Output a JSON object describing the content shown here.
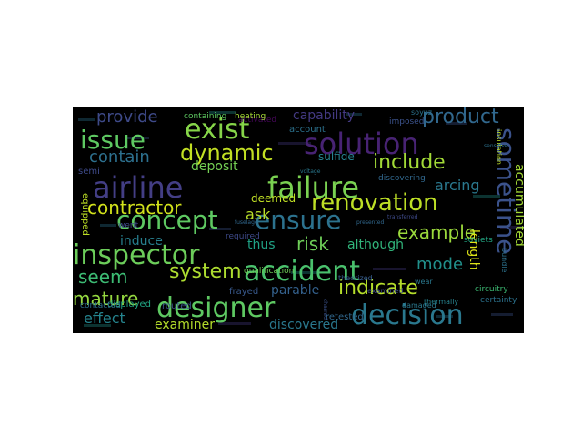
{
  "cloud": {
    "background": "#000000",
    "words": [
      {
        "text": "solution",
        "color": "#482374"
      },
      {
        "text": "sometime",
        "color": "#3b528b"
      },
      {
        "text": "decision",
        "color": "#2a788e"
      },
      {
        "text": "airline",
        "color": "#433e85"
      },
      {
        "text": "failure",
        "color": "#7ad151"
      },
      {
        "text": "issue",
        "color": "#5ec962"
      },
      {
        "text": "exist",
        "color": "#86d549"
      },
      {
        "text": "designer",
        "color": "#5ec962"
      },
      {
        "text": "accident",
        "color": "#4ac16d"
      },
      {
        "text": "concept",
        "color": "#5ec962"
      },
      {
        "text": "ensure",
        "color": "#2c728e"
      },
      {
        "text": "renovation",
        "color": "#bddf26"
      },
      {
        "text": "inspector",
        "color": "#6ccd5a"
      },
      {
        "text": "dynamic",
        "color": "#c2df23"
      },
      {
        "text": "indicate",
        "color": "#b5de2b"
      },
      {
        "text": "include",
        "color": "#a2da37"
      },
      {
        "text": "example",
        "color": "#9bd93c"
      },
      {
        "text": "product",
        "color": "#31688e"
      },
      {
        "text": "contractor",
        "color": "#d2e21b"
      },
      {
        "text": "system",
        "color": "#addc30"
      },
      {
        "text": "provide",
        "color": "#3e4a89"
      },
      {
        "text": "contain",
        "color": "#2d708e"
      },
      {
        "text": "mature",
        "color": "#95d840"
      },
      {
        "text": "seem",
        "color": "#3dbc74"
      },
      {
        "text": "risk",
        "color": "#6ece58"
      },
      {
        "text": "mode",
        "color": "#21918c"
      },
      {
        "text": "effect",
        "color": "#25848e"
      },
      {
        "text": "ask",
        "color": "#b8de29"
      },
      {
        "text": "accumulated",
        "color": "#a5db36"
      },
      {
        "text": "capability",
        "color": "#443a83"
      },
      {
        "text": "arcing",
        "color": "#2a788e"
      },
      {
        "text": "deposit",
        "color": "#75d054"
      },
      {
        "text": "sulfide",
        "color": "#26818e"
      },
      {
        "text": "induce",
        "color": "#277f8e"
      },
      {
        "text": "thus",
        "color": "#20a386"
      },
      {
        "text": "although",
        "color": "#31b57b"
      },
      {
        "text": "length",
        "color": "#dde318"
      },
      {
        "text": "parable",
        "color": "#34618d"
      },
      {
        "text": "examiner",
        "color": "#b5de2b"
      },
      {
        "text": "discovered",
        "color": "#2a788e"
      },
      {
        "text": "deemed",
        "color": "#c0df25"
      },
      {
        "text": "account",
        "color": "#2c728e"
      },
      {
        "text": "semi",
        "color": "#3e4a89"
      },
      {
        "text": "equipped",
        "color": "#bddf26"
      },
      {
        "text": "displayed",
        "color": "#22a785"
      },
      {
        "text": "routed",
        "color": "#3b528b"
      },
      {
        "text": "frayed",
        "color": "#38598c"
      },
      {
        "text": "retested",
        "color": "#31688e"
      },
      {
        "text": "activated",
        "color": "#46075a"
      },
      {
        "text": "qualification",
        "color": "#6ece58"
      },
      {
        "text": "contacted",
        "color": "#2d708e"
      },
      {
        "text": "went",
        "color": "#3e4a89"
      },
      {
        "text": "required",
        "color": "#3e4a89"
      },
      {
        "text": "soviets",
        "color": "#22a884"
      },
      {
        "text": "circuitry",
        "color": "#3dbc74"
      },
      {
        "text": "bundle",
        "color": "#2c728e"
      },
      {
        "text": "heating",
        "color": "#a5db36"
      },
      {
        "text": "containing",
        "color": "#5ec962"
      },
      {
        "text": "imposed",
        "color": "#3b528b"
      },
      {
        "text": "soyuz",
        "color": "#2c728e"
      },
      {
        "text": "insulation",
        "color": "#bddf26"
      },
      {
        "text": "discovering",
        "color": "#31688e"
      },
      {
        "text": "theorized",
        "color": "#365d8d"
      },
      {
        "text": "examined",
        "color": "#3e4a89"
      },
      {
        "text": "damaged",
        "color": "#2a788e"
      },
      {
        "text": "certainty",
        "color": "#2c728e"
      },
      {
        "text": "thermally",
        "color": "#26828e"
      },
      {
        "text": "wear",
        "color": "#2a788e"
      },
      {
        "text": "sensitive",
        "color": "#2c728e"
      },
      {
        "text": "transferred",
        "color": "#3e4a89"
      },
      {
        "text": "presented",
        "color": "#31688e"
      },
      {
        "text": "charred",
        "color": "#3b528b"
      },
      {
        "text": "voltage",
        "color": "#2a788e"
      },
      {
        "text": "fuselage",
        "color": "#31688e"
      }
    ]
  }
}
